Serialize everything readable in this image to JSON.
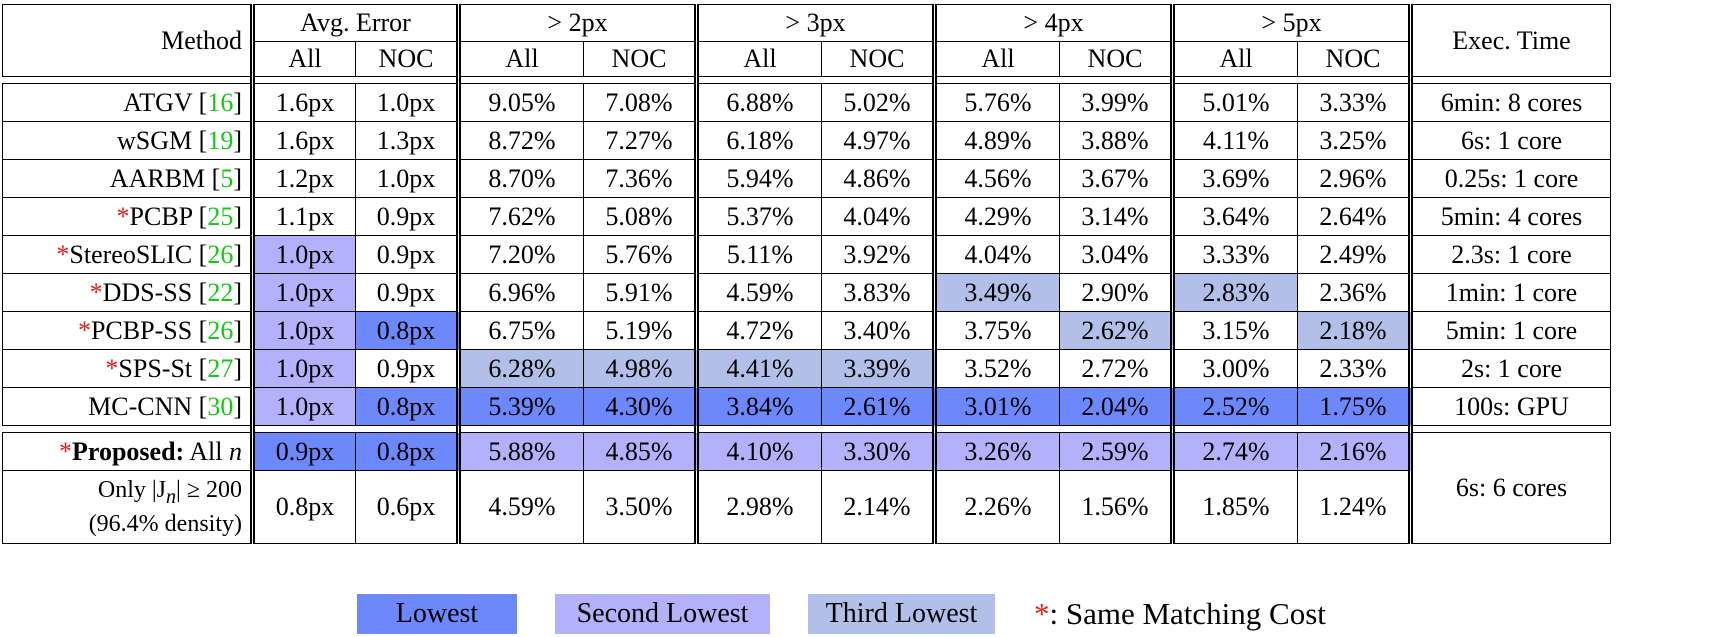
{
  "header": {
    "method": "Method",
    "groups": [
      "Avg. Error",
      "> 2px",
      "> 3px",
      "> 4px",
      "> 5px"
    ],
    "all": "All",
    "noc": "NOC",
    "exec": "Exec. Time"
  },
  "rows": [
    {
      "pre": "",
      "name": "ATGV ",
      "ref": "16",
      "vals": [
        "1.6px",
        "1.0px",
        "9.05%",
        "7.08%",
        "6.88%",
        "5.02%",
        "5.76%",
        "3.99%",
        "5.01%",
        "3.33%"
      ],
      "rank": [
        0,
        0,
        0,
        0,
        0,
        0,
        0,
        0,
        0,
        0
      ],
      "time": "6min: 8 cores"
    },
    {
      "pre": "",
      "name": "wSGM ",
      "ref": "19",
      "vals": [
        "1.6px",
        "1.3px",
        "8.72%",
        "7.27%",
        "6.18%",
        "4.97%",
        "4.89%",
        "3.88%",
        "4.11%",
        "3.25%"
      ],
      "rank": [
        0,
        0,
        0,
        0,
        0,
        0,
        0,
        0,
        0,
        0
      ],
      "time": "6s: 1 core"
    },
    {
      "pre": "",
      "name": "AARBM ",
      "ref": "5",
      "vals": [
        "1.2px",
        "1.0px",
        "8.70%",
        "7.36%",
        "5.94%",
        "4.86%",
        "4.56%",
        "3.67%",
        "3.69%",
        "2.96%"
      ],
      "rank": [
        0,
        0,
        0,
        0,
        0,
        0,
        0,
        0,
        0,
        0
      ],
      "time": "0.25s: 1 core"
    },
    {
      "pre": "*",
      "name": "PCBP ",
      "ref": "25",
      "vals": [
        "1.1px",
        "0.9px",
        "7.62%",
        "5.08%",
        "5.37%",
        "4.04%",
        "4.29%",
        "3.14%",
        "3.64%",
        "2.64%"
      ],
      "rank": [
        0,
        0,
        0,
        0,
        0,
        0,
        0,
        0,
        0,
        0
      ],
      "time": "5min: 4 cores"
    },
    {
      "pre": "*",
      "name": "StereoSLIC ",
      "ref": "26",
      "vals": [
        "1.0px",
        "0.9px",
        "7.20%",
        "5.76%",
        "5.11%",
        "3.92%",
        "4.04%",
        "3.04%",
        "3.33%",
        "2.49%"
      ],
      "rank": [
        2,
        0,
        0,
        0,
        0,
        0,
        0,
        0,
        0,
        0
      ],
      "time": "2.3s: 1 core"
    },
    {
      "pre": "*",
      "name": "DDS-SS ",
      "ref": "22",
      "vals": [
        "1.0px",
        "0.9px",
        "6.96%",
        "5.91%",
        "4.59%",
        "3.83%",
        "3.49%",
        "2.90%",
        "2.83%",
        "2.36%"
      ],
      "rank": [
        2,
        0,
        0,
        0,
        0,
        0,
        3,
        0,
        3,
        0
      ],
      "time": "1min: 1 core"
    },
    {
      "pre": "*",
      "name": "PCBP-SS ",
      "ref": "26",
      "vals": [
        "1.0px",
        "0.8px",
        "6.75%",
        "5.19%",
        "4.72%",
        "3.40%",
        "3.75%",
        "2.62%",
        "3.15%",
        "2.18%"
      ],
      "rank": [
        2,
        1,
        0,
        0,
        0,
        0,
        0,
        3,
        0,
        3
      ],
      "time": "5min: 1 core"
    },
    {
      "pre": "*",
      "name": "SPS-St ",
      "ref": "27",
      "vals": [
        "1.0px",
        "0.9px",
        "6.28%",
        "4.98%",
        "4.41%",
        "3.39%",
        "3.52%",
        "2.72%",
        "3.00%",
        "2.33%"
      ],
      "rank": [
        2,
        0,
        3,
        3,
        3,
        3,
        0,
        0,
        0,
        0
      ],
      "time": "2s: 1 core"
    },
    {
      "pre": "",
      "name": "MC-CNN ",
      "ref": "30",
      "vals": [
        "1.0px",
        "0.8px",
        "5.39%",
        "4.30%",
        "3.84%",
        "2.61%",
        "3.01%",
        "2.04%",
        "2.52%",
        "1.75%"
      ],
      "rank": [
        2,
        1,
        1,
        1,
        1,
        1,
        1,
        1,
        1,
        1
      ],
      "time": "100s: GPU"
    }
  ],
  "proposed": {
    "pre": "*",
    "label": "Proposed:",
    "rest": " All ",
    "var": "n",
    "vals": [
      "0.9px",
      "0.8px",
      "5.88%",
      "4.85%",
      "4.10%",
      "3.30%",
      "3.26%",
      "2.59%",
      "2.74%",
      "2.16%"
    ],
    "rank": [
      1,
      1,
      2,
      2,
      2,
      2,
      2,
      2,
      2,
      2
    ],
    "time": "6s: 6 cores"
  },
  "only": {
    "line1": "Only |J",
    "sub": "n",
    "line1b": "| ≥ 200",
    "line2": "(96.4% density)",
    "vals": [
      "0.8px",
      "0.6px",
      "4.59%",
      "3.50%",
      "2.98%",
      "2.14%",
      "2.26%",
      "1.56%",
      "1.85%",
      "1.24%"
    ]
  },
  "legend": {
    "lowest": "Lowest",
    "second": "Second Lowest",
    "third": "Third Lowest",
    "star": "*",
    "note": ": Same Matching Cost"
  },
  "colors": {
    "lowest": "#6d88fb",
    "second": "#b4b1fb",
    "third": "#b2bfe8",
    "ref": "#17c917",
    "star": "#e02020"
  }
}
